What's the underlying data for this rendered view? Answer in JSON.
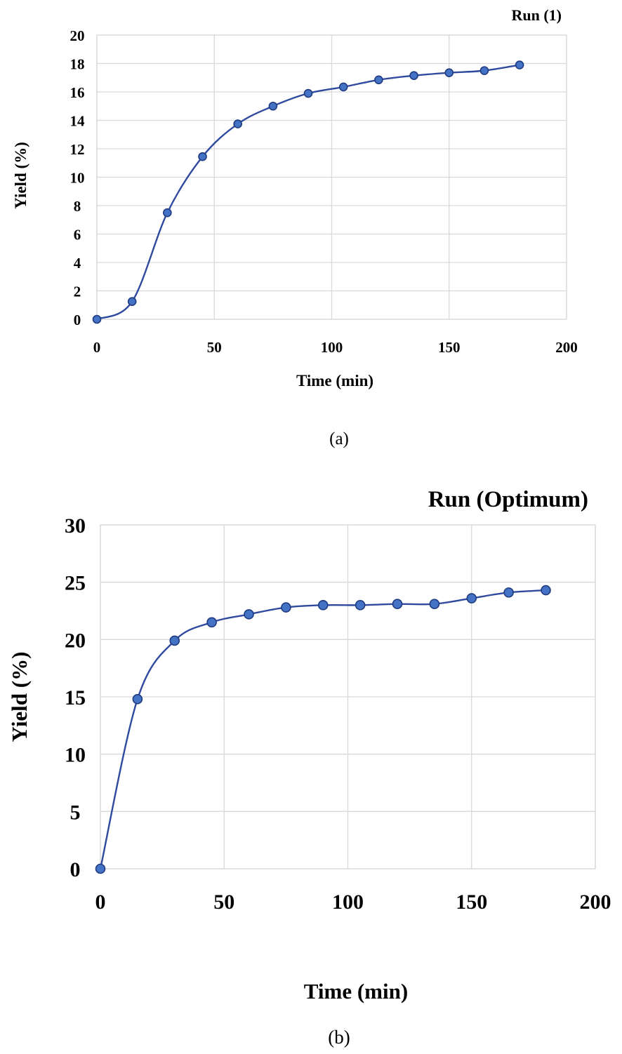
{
  "colors": {
    "marker_fill": "#4472c4",
    "marker_stroke": "#1f3b80",
    "line": "#2f4a9e",
    "grid": "#d9d9d9"
  },
  "chart_data": [
    {
      "type": "line",
      "title": "Run (1)",
      "caption": "(a)",
      "xlabel": "Time (min)",
      "ylabel": "Yield (%)",
      "xlim": [
        0,
        200
      ],
      "ylim": [
        0,
        20
      ],
      "xticks": [
        0,
        50,
        100,
        150,
        200
      ],
      "yticks": [
        0,
        2,
        4,
        6,
        8,
        10,
        12,
        14,
        16,
        18,
        20
      ],
      "grid": true,
      "smooth": true,
      "series": [
        {
          "x": [
            0,
            15,
            30,
            45,
            60,
            75,
            90,
            105,
            120,
            135,
            150,
            165,
            180
          ],
          "y": [
            0,
            1.25,
            7.5,
            11.45,
            13.75,
            15.0,
            15.9,
            16.35,
            16.85,
            17.15,
            17.35,
            17.5,
            17.9
          ]
        }
      ]
    },
    {
      "type": "line",
      "title": "Run (Optimum)",
      "caption": "(b)",
      "xlabel": "Time (min)",
      "ylabel": "Yield (%)",
      "xlim": [
        0,
        200
      ],
      "ylim": [
        0,
        30
      ],
      "xticks": [
        0,
        50,
        100,
        150,
        200
      ],
      "yticks": [
        0,
        5,
        10,
        15,
        20,
        25,
        30
      ],
      "grid": true,
      "smooth": true,
      "series": [
        {
          "x": [
            0,
            15,
            30,
            45,
            60,
            75,
            90,
            105,
            120,
            135,
            150,
            165,
            180
          ],
          "y": [
            0,
            14.8,
            19.9,
            21.5,
            22.2,
            22.8,
            23.0,
            23.0,
            23.1,
            23.1,
            23.6,
            24.1,
            24.3
          ]
        }
      ]
    }
  ]
}
